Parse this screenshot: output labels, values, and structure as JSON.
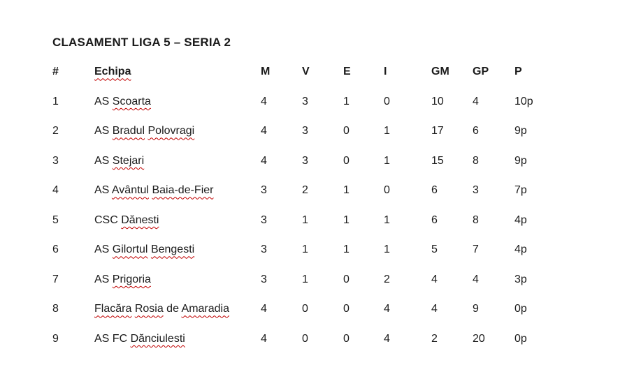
{
  "title": "CLASAMENT LIGA 5 – SERIA 2",
  "colors": {
    "text": "#1b1b1b",
    "background": "#ffffff",
    "squiggle_underline": "#c00000"
  },
  "table": {
    "columns": [
      {
        "key": "rank",
        "label": "#",
        "squiggle": false
      },
      {
        "key": "team",
        "label": "Echipa",
        "squiggle": true
      },
      {
        "key": "m",
        "label": "M",
        "squiggle": false
      },
      {
        "key": "v",
        "label": "V",
        "squiggle": false
      },
      {
        "key": "e",
        "label": "E",
        "squiggle": false
      },
      {
        "key": "i",
        "label": "I",
        "squiggle": false
      },
      {
        "key": "gm",
        "label": "GM",
        "squiggle": false
      },
      {
        "key": "gp",
        "label": "GP",
        "squiggle": false
      },
      {
        "key": "p",
        "label": "P",
        "squiggle": false
      }
    ],
    "rows": [
      {
        "rank": "1",
        "team_segments": [
          {
            "text": "AS ",
            "squiggle": false
          },
          {
            "text": "Scoarta",
            "squiggle": true
          }
        ],
        "m": "4",
        "v": "3",
        "e": "1",
        "i": "0",
        "gm": "10",
        "gp": "4",
        "p": "10p"
      },
      {
        "rank": "2",
        "team_segments": [
          {
            "text": "AS ",
            "squiggle": false
          },
          {
            "text": "Bradul",
            "squiggle": true
          },
          {
            "text": " ",
            "squiggle": false
          },
          {
            "text": "Polovragi",
            "squiggle": true
          }
        ],
        "m": "4",
        "v": "3",
        "e": "0",
        "i": "1",
        "gm": "17",
        "gp": "6",
        "p": "9p"
      },
      {
        "rank": "3",
        "team_segments": [
          {
            "text": "AS ",
            "squiggle": false
          },
          {
            "text": "Stejari",
            "squiggle": true
          }
        ],
        "m": "4",
        "v": "3",
        "e": "0",
        "i": "1",
        "gm": "15",
        "gp": "8",
        "p": "9p"
      },
      {
        "rank": "4",
        "team_segments": [
          {
            "text": "AS ",
            "squiggle": false
          },
          {
            "text": "Avântul",
            "squiggle": true
          },
          {
            "text": " ",
            "squiggle": false
          },
          {
            "text": "Baia-de-Fier",
            "squiggle": true
          }
        ],
        "m": "3",
        "v": "2",
        "e": "1",
        "i": "0",
        "gm": "6",
        "gp": "3",
        "p": "7p"
      },
      {
        "rank": "5",
        "team_segments": [
          {
            "text": "CSC ",
            "squiggle": false
          },
          {
            "text": "Dănesti",
            "squiggle": true
          }
        ],
        "m": "3",
        "v": "1",
        "e": "1",
        "i": "1",
        "gm": "6",
        "gp": "8",
        "p": "4p"
      },
      {
        "rank": "6",
        "team_segments": [
          {
            "text": "AS ",
            "squiggle": false
          },
          {
            "text": "Gilortul",
            "squiggle": true
          },
          {
            "text": " ",
            "squiggle": false
          },
          {
            "text": "Bengesti",
            "squiggle": true
          }
        ],
        "m": "3",
        "v": "1",
        "e": "1",
        "i": "1",
        "gm": "5",
        "gp": "7",
        "p": "4p"
      },
      {
        "rank": "7",
        "team_segments": [
          {
            "text": "AS ",
            "squiggle": false
          },
          {
            "text": "Prigoria",
            "squiggle": true
          }
        ],
        "m": "3",
        "v": "1",
        "e": "0",
        "i": "2",
        "gm": "4",
        "gp": "4",
        "p": "3p"
      },
      {
        "rank": "8",
        "team_segments": [
          {
            "text": "Flacăra",
            "squiggle": true
          },
          {
            "text": " ",
            "squiggle": false
          },
          {
            "text": "Rosia",
            "squiggle": true
          },
          {
            "text": " de ",
            "squiggle": false
          },
          {
            "text": "Amaradia",
            "squiggle": true
          }
        ],
        "m": "4",
        "v": "0",
        "e": "0",
        "i": "4",
        "gm": "4",
        "gp": "9",
        "p": "0p"
      },
      {
        "rank": "9",
        "team_segments": [
          {
            "text": "AS FC ",
            "squiggle": false
          },
          {
            "text": "Dănciulesti",
            "squiggle": true
          }
        ],
        "m": "4",
        "v": "0",
        "e": "0",
        "i": "4",
        "gm": "2",
        "gp": "20",
        "p": "0p"
      }
    ]
  }
}
